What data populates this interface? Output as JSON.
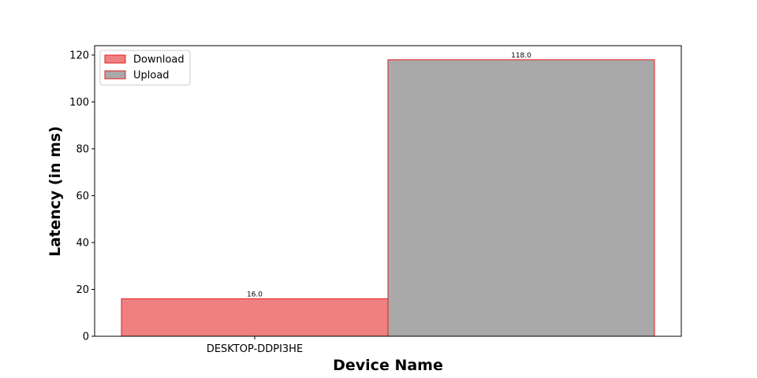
{
  "chart_data": {
    "type": "bar",
    "title": "",
    "xlabel": "Device Name",
    "ylabel": "Latency (in ms)",
    "categories": [
      "DESKTOP-DDPI3HE"
    ],
    "series": [
      {
        "name": "Download",
        "values": [
          16.0
        ],
        "value_labels": [
          "16.0"
        ],
        "color": "#f08080",
        "edge_color": "#e31a1c"
      },
      {
        "name": "Upload",
        "values": [
          118.0
        ],
        "value_labels": [
          "118.0"
        ],
        "color": "#a9a9a9",
        "edge_color": "#e31a1c"
      }
    ],
    "ylim": [
      0,
      124
    ],
    "yticks": [
      0,
      20,
      40,
      60,
      80,
      100,
      120
    ],
    "grid": false,
    "legend_position": "top-left"
  }
}
